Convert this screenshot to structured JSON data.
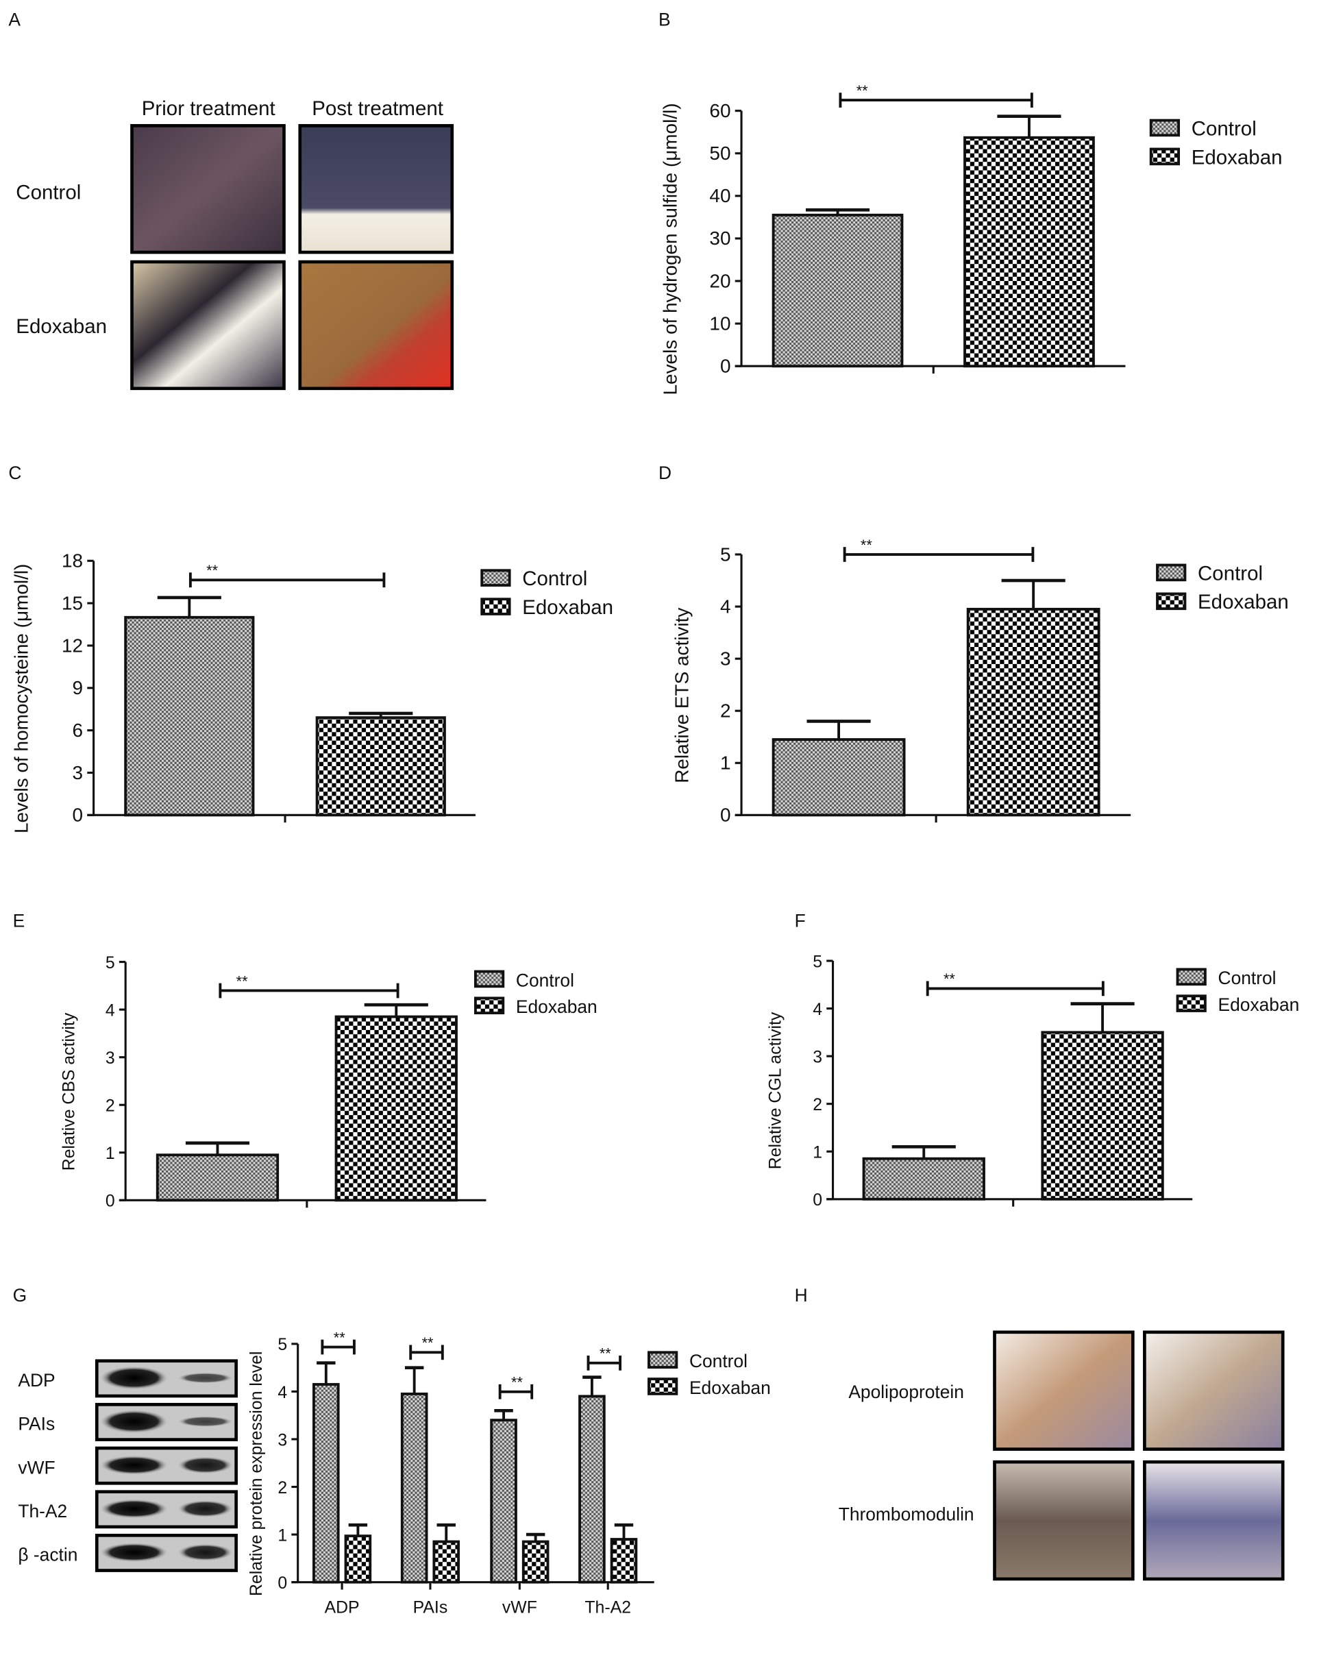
{
  "panel_letters": {
    "A": "A",
    "B": "B",
    "C": "C",
    "D": "D",
    "E": "E",
    "F": "F",
    "G": "G",
    "H": "H"
  },
  "panel_a": {
    "columns": [
      "Prior treatment",
      "Post treatment"
    ],
    "rows": [
      "Control",
      "Edoxaban"
    ]
  },
  "panel_g_blot": {
    "rows": [
      "ADP",
      "PAIs",
      "vWF",
      "Th-A2",
      "β -actin"
    ]
  },
  "panel_h": {
    "rows": [
      "Apolipoprotein",
      "Thrombomodulin"
    ]
  },
  "colors": {
    "control_pattern": "#8a8a8a",
    "edoxaban_pattern": "#000000",
    "axis": "#111111"
  },
  "chart_data": [
    {
      "panel": "B",
      "type": "bar",
      "ylabel": "Levels of hydrogen sulfide (μmol/l)",
      "ylim": [
        0,
        60
      ],
      "yticks": [
        0,
        10,
        20,
        30,
        40,
        50,
        60
      ],
      "categories": [
        ""
      ],
      "legend": "right",
      "series": [
        {
          "name": "Control",
          "values": [
            35.5
          ],
          "errors": [
            1.2
          ]
        },
        {
          "name": "Edoxaban",
          "values": [
            53.7
          ],
          "errors": [
            5.0
          ]
        }
      ],
      "significance": [
        "**"
      ]
    },
    {
      "panel": "C",
      "type": "bar",
      "ylabel": "Levels of homocysteine (μmol/l)",
      "ylim": [
        0,
        18
      ],
      "yticks": [
        0,
        3,
        6,
        9,
        12,
        15,
        18
      ],
      "categories": [
        ""
      ],
      "legend": "right",
      "series": [
        {
          "name": "Control",
          "values": [
            14.0
          ],
          "errors": [
            1.4
          ]
        },
        {
          "name": "Edoxaban",
          "values": [
            6.9
          ],
          "errors": [
            0.3
          ]
        }
      ],
      "significance": [
        "**"
      ]
    },
    {
      "panel": "D",
      "type": "bar",
      "ylabel": "Relative ETS activity",
      "ylim": [
        0,
        5
      ],
      "yticks": [
        0,
        1,
        2,
        3,
        4,
        5
      ],
      "categories": [
        ""
      ],
      "legend": "right",
      "series": [
        {
          "name": "Control",
          "values": [
            1.45
          ],
          "errors": [
            0.35
          ]
        },
        {
          "name": "Edoxaban",
          "values": [
            3.95
          ],
          "errors": [
            0.55
          ]
        }
      ],
      "significance": [
        "**"
      ]
    },
    {
      "panel": "E",
      "type": "bar",
      "ylabel": "Relative CBS activity",
      "ylim": [
        0,
        5
      ],
      "yticks": [
        0,
        1,
        2,
        3,
        4,
        5
      ],
      "categories": [
        ""
      ],
      "legend": "right",
      "series": [
        {
          "name": "Control",
          "values": [
            0.95
          ],
          "errors": [
            0.25
          ]
        },
        {
          "name": "Edoxaban",
          "values": [
            3.85
          ],
          "errors": [
            0.25
          ]
        }
      ],
      "significance": [
        "**"
      ]
    },
    {
      "panel": "F",
      "type": "bar",
      "ylabel": "Relative CGL activity",
      "ylim": [
        0,
        5
      ],
      "yticks": [
        0,
        1,
        2,
        3,
        4,
        5
      ],
      "categories": [
        ""
      ],
      "legend": "right",
      "series": [
        {
          "name": "Control",
          "values": [
            0.85
          ],
          "errors": [
            0.25
          ]
        },
        {
          "name": "Edoxaban",
          "values": [
            3.5
          ],
          "errors": [
            0.6
          ]
        }
      ],
      "significance": [
        "**"
      ]
    },
    {
      "panel": "G",
      "type": "bar",
      "ylabel": "Relative protein expression level",
      "ylim": [
        0,
        5
      ],
      "yticks": [
        0,
        1,
        2,
        3,
        4,
        5
      ],
      "categories": [
        "ADP",
        "PAIs",
        "vWF",
        "Th-A2"
      ],
      "legend": "right",
      "series": [
        {
          "name": "Control",
          "values": [
            4.15,
            3.95,
            3.4,
            3.9
          ],
          "errors": [
            0.45,
            0.55,
            0.2,
            0.4
          ]
        },
        {
          "name": "Edoxaban",
          "values": [
            0.97,
            0.85,
            0.85,
            0.9
          ],
          "errors": [
            0.23,
            0.35,
            0.15,
            0.3
          ]
        }
      ],
      "significance": [
        "**",
        "**",
        "**",
        "**"
      ]
    }
  ]
}
